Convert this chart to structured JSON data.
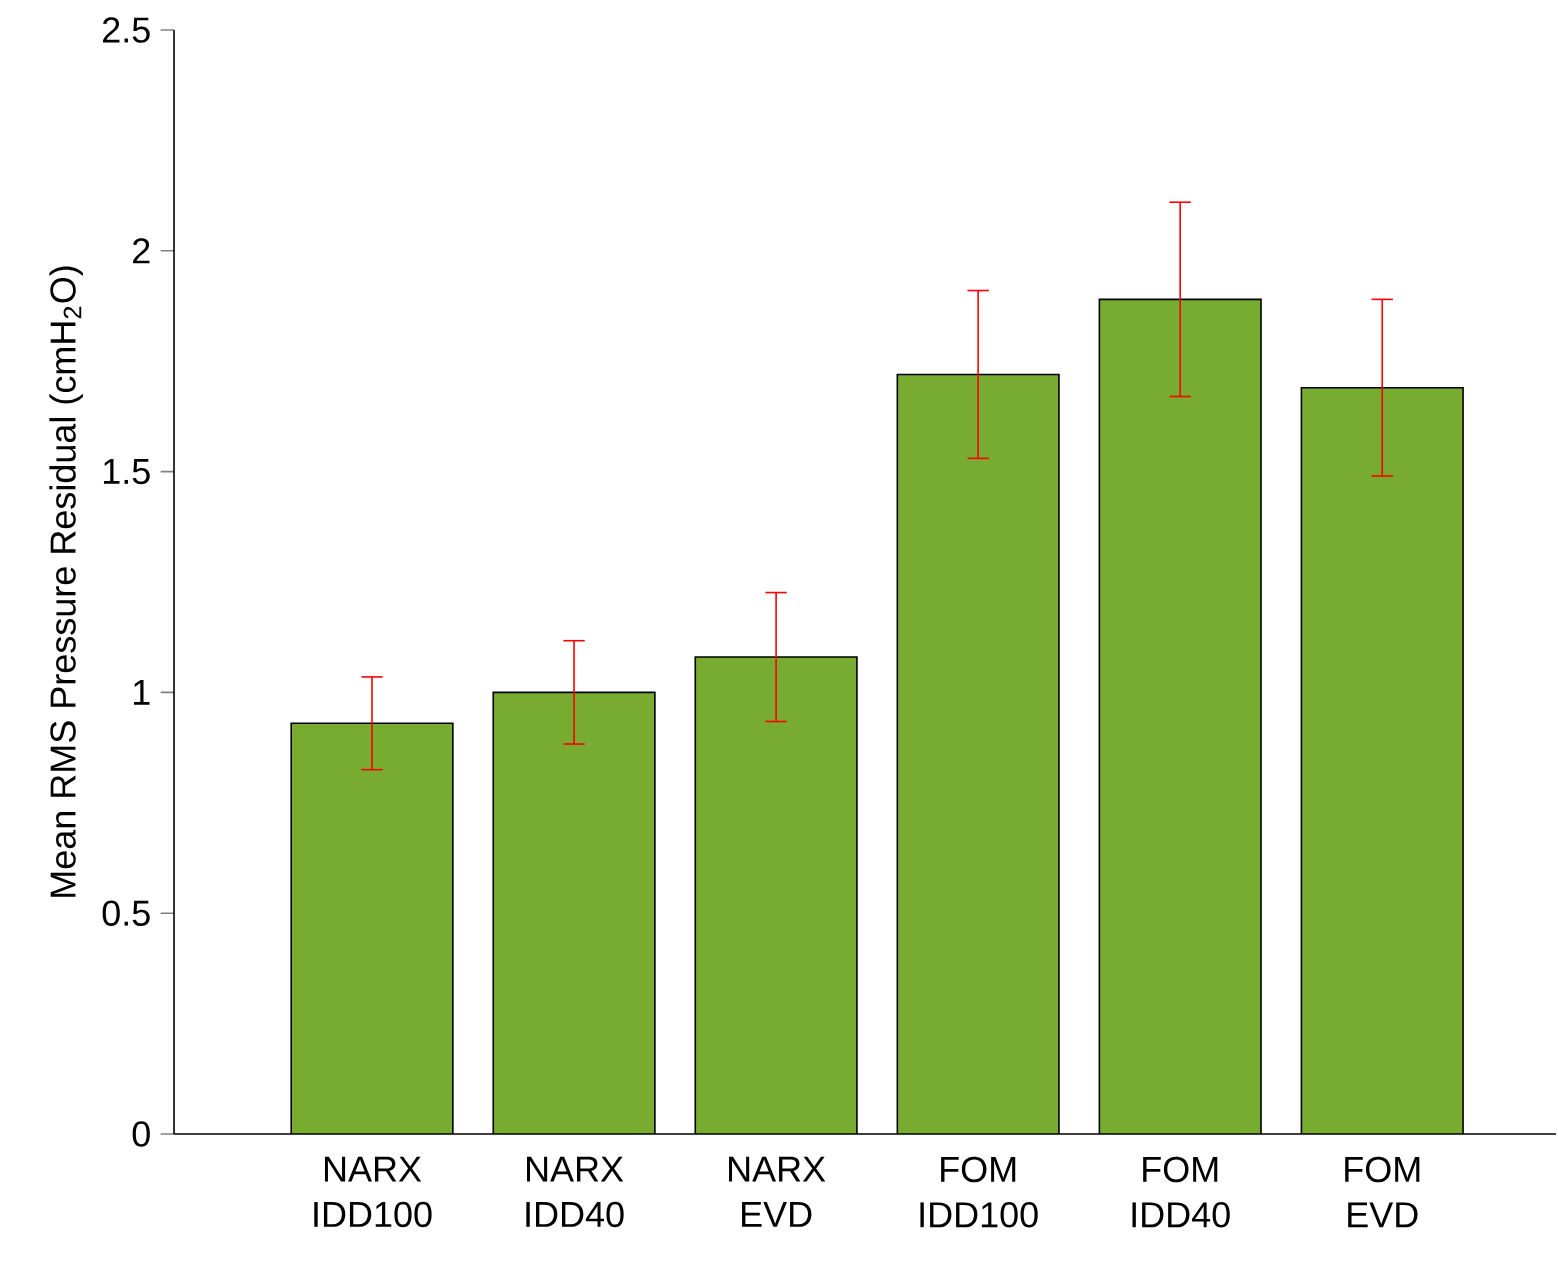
{
  "chart_data": {
    "type": "bar",
    "ylabel": "Mean RMS Pressure Residual (cmH$_{2}$O)",
    "categories": [
      "NARX IDD100",
      "NARX IDD40",
      "NARX EVD",
      "FOM IDD100",
      "FOM IDD40",
      "FOM EVD"
    ],
    "values": [
      0.93,
      1.0,
      1.08,
      1.72,
      1.89,
      1.69
    ],
    "errors": [
      0.105,
      0.117,
      0.146,
      0.19,
      0.22,
      0.2
    ],
    "color": "#77ac30",
    "ylim": [
      0,
      2.5
    ],
    "yticks": [
      0,
      0.5,
      1,
      1.5,
      2,
      2.5
    ],
    "grid": false
  }
}
